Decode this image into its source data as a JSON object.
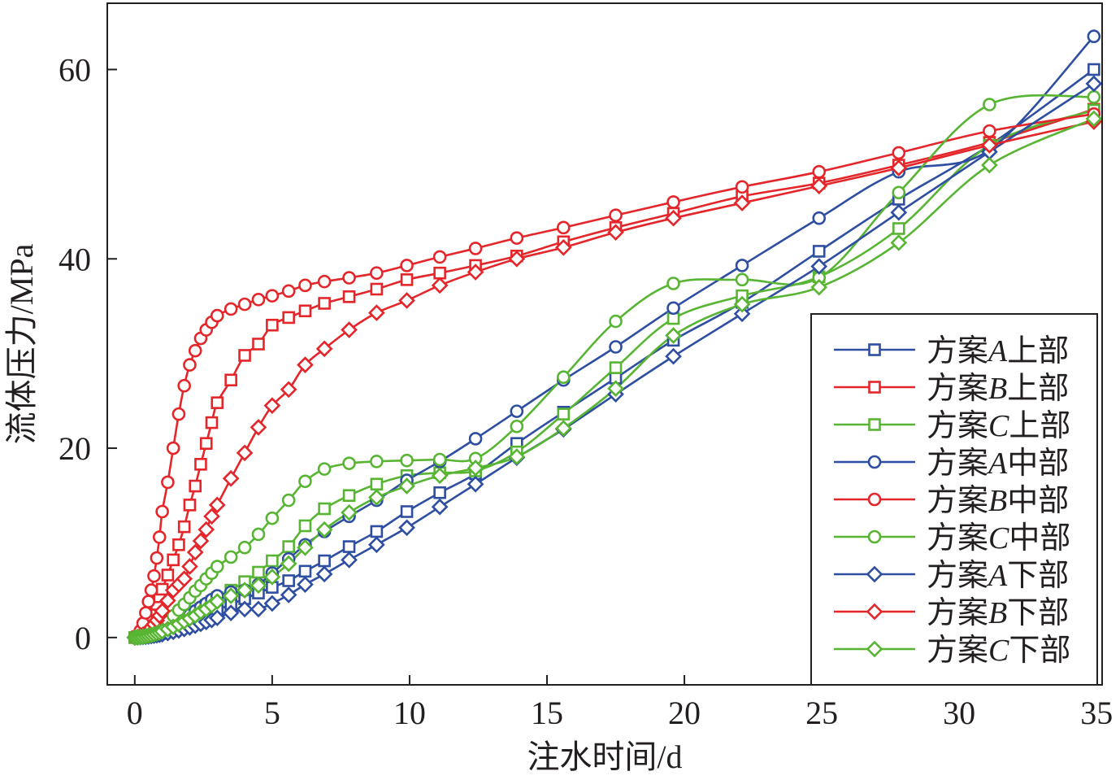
{
  "chart_data": {
    "type": "line",
    "title": "",
    "xlabel": "注水时间/d",
    "ylabel": "流体压力/MPa",
    "xlim": [
      -1,
      35.2
    ],
    "ylim": [
      -5,
      67
    ],
    "xticks": [
      0,
      5,
      10,
      15,
      20,
      25,
      30,
      35
    ],
    "yticks": [
      0,
      20,
      40,
      60
    ],
    "x": [
      0,
      0.1,
      0.2,
      0.3,
      0.4,
      0.5,
      0.6,
      0.7,
      0.8,
      0.9,
      1.0,
      1.2,
      1.4,
      1.6,
      1.8,
      2.0,
      2.2,
      2.4,
      2.6,
      2.8,
      3.0,
      3.5,
      4.0,
      4.5,
      5.0,
      5.6,
      6.2,
      6.9,
      7.8,
      8.8,
      9.9,
      11.1,
      12.4,
      13.9,
      15.6,
      17.5,
      19.6,
      22.1,
      24.9,
      27.8,
      31.1,
      34.9
    ],
    "series": [
      {
        "name": "方案A上部",
        "label_main": "方案",
        "label_italic": "A",
        "label_tail": "上部",
        "color": "#2e4ea1",
        "marker": "square",
        "values": [
          0,
          0.02,
          0.05,
          0.08,
          0.12,
          0.17,
          0.22,
          0.28,
          0.35,
          0.42,
          0.5,
          0.66,
          0.84,
          1.04,
          1.26,
          1.5,
          1.76,
          2.0,
          2.3,
          2.6,
          2.9,
          3.5,
          4.1,
          4.7,
          5.3,
          6.0,
          7.0,
          8.1,
          9.6,
          11.2,
          13.3,
          15.3,
          17.3,
          20.5,
          23.8,
          27.4,
          31.4,
          35.4,
          40.8,
          46.3,
          52.0,
          60.0
        ]
      },
      {
        "name": "方案B上部",
        "label_main": "方案",
        "label_italic": "B",
        "label_tail": "上部",
        "color": "#e4262b",
        "marker": "square",
        "values": [
          0,
          0.1,
          0.3,
          0.6,
          1.0,
          1.5,
          2.1,
          2.8,
          3.5,
          4.3,
          5.1,
          6.6,
          8.2,
          9.8,
          11.7,
          14.0,
          16.0,
          18.3,
          20.5,
          22.7,
          24.8,
          27.2,
          29.8,
          31.0,
          33.0,
          33.8,
          34.5,
          35.3,
          36.0,
          36.8,
          37.8,
          38.5,
          39.3,
          40.3,
          41.8,
          43.3,
          44.8,
          46.6,
          48.0,
          49.9,
          52.3,
          55.8
        ]
      },
      {
        "name": "方案C上部",
        "label_main": "方案",
        "label_italic": "C",
        "label_tail": "上部",
        "color": "#58b533",
        "marker": "square",
        "values": [
          0,
          0.03,
          0.07,
          0.12,
          0.18,
          0.25,
          0.33,
          0.42,
          0.52,
          0.63,
          0.75,
          1.0,
          1.3,
          1.6,
          1.9,
          2.2,
          2.6,
          3.0,
          3.4,
          3.8,
          4.2,
          5.0,
          5.9,
          6.9,
          8.1,
          9.6,
          11.8,
          13.6,
          15.0,
          16.2,
          17.1,
          17.4,
          17.6,
          19.6,
          23.6,
          28.5,
          33.7,
          36.1,
          38.1,
          43.2,
          52.0,
          55.7
        ]
      },
      {
        "name": "方案A中部",
        "label_main": "方案",
        "label_italic": "A",
        "label_tail": "中部",
        "color": "#2e4ea1",
        "marker": "circle",
        "values": [
          0,
          0.03,
          0.07,
          0.13,
          0.2,
          0.28,
          0.37,
          0.47,
          0.58,
          0.7,
          0.82,
          1.1,
          1.4,
          1.7,
          2.0,
          2.4,
          2.8,
          3.2,
          3.6,
          4.0,
          4.4,
          4.8,
          5.0,
          5.6,
          6.8,
          8.3,
          9.8,
          11.2,
          12.8,
          14.5,
          16.6,
          18.6,
          21.0,
          23.9,
          27.2,
          30.7,
          34.8,
          39.3,
          44.3,
          49.2,
          51.5,
          63.5
        ]
      },
      {
        "name": "方案B中部",
        "label_main": "方案",
        "label_italic": "B",
        "label_tail": "中部",
        "color": "#e4262b",
        "marker": "circle",
        "values": [
          0,
          0.2,
          0.7,
          1.5,
          2.6,
          3.8,
          5.0,
          6.5,
          8.4,
          10.6,
          13.3,
          16.4,
          20.0,
          23.6,
          26.6,
          28.8,
          30.3,
          31.6,
          32.5,
          33.3,
          34.0,
          34.7,
          35.2,
          35.7,
          36.1,
          36.6,
          37.2,
          37.6,
          38.0,
          38.5,
          39.3,
          40.2,
          41.1,
          42.2,
          43.3,
          44.6,
          46.0,
          47.6,
          49.2,
          51.2,
          53.5,
          55.3
        ]
      },
      {
        "name": "方案C中部",
        "label_main": "方案",
        "label_italic": "C",
        "label_tail": "中部",
        "color": "#58b533",
        "marker": "circle",
        "values": [
          0,
          0.05,
          0.12,
          0.2,
          0.3,
          0.42,
          0.55,
          0.7,
          0.88,
          1.07,
          1.3,
          1.8,
          2.3,
          2.9,
          3.5,
          4.2,
          4.9,
          5.5,
          6.2,
          6.8,
          7.5,
          8.5,
          9.5,
          10.9,
          12.6,
          14.5,
          16.5,
          17.8,
          18.4,
          18.6,
          18.7,
          18.8,
          18.9,
          22.3,
          27.5,
          33.4,
          37.4,
          37.8,
          38.0,
          47.0,
          56.3,
          57.1
        ]
      },
      {
        "name": "方案A下部",
        "label_main": "方案",
        "label_italic": "A",
        "label_tail": "下部",
        "color": "#2e4ea1",
        "marker": "diamond",
        "values": [
          0,
          0.01,
          0.03,
          0.05,
          0.08,
          0.11,
          0.15,
          0.19,
          0.24,
          0.29,
          0.35,
          0.47,
          0.6,
          0.74,
          0.9,
          1.07,
          1.25,
          1.44,
          1.64,
          1.85,
          2.07,
          2.6,
          3.0,
          3.0,
          3.6,
          4.5,
          5.6,
          6.7,
          8.2,
          9.8,
          11.6,
          13.8,
          16.2,
          19.0,
          22.0,
          25.7,
          29.7,
          34.2,
          39.2,
          44.9,
          51.3,
          58.5
        ]
      },
      {
        "name": "方案B下部",
        "label_main": "方案",
        "label_italic": "B",
        "label_tail": "下部",
        "color": "#e4262b",
        "marker": "diamond",
        "values": [
          0,
          0.05,
          0.15,
          0.3,
          0.5,
          0.75,
          1.05,
          1.4,
          1.8,
          2.3,
          2.8,
          3.9,
          5.0,
          5.6,
          6.2,
          7.5,
          9.0,
          10.2,
          11.4,
          12.8,
          14.0,
          16.8,
          19.5,
          22.2,
          24.5,
          26.2,
          28.8,
          30.5,
          32.5,
          34.3,
          35.6,
          37.2,
          38.6,
          40.0,
          41.2,
          42.8,
          44.3,
          45.9,
          47.7,
          49.6,
          52.0,
          54.5
        ]
      },
      {
        "name": "方案C下部",
        "label_main": "方案",
        "label_italic": "C",
        "label_tail": "下部",
        "color": "#58b533",
        "marker": "diamond",
        "values": [
          0,
          0.02,
          0.05,
          0.09,
          0.14,
          0.2,
          0.27,
          0.35,
          0.44,
          0.54,
          0.65,
          0.88,
          1.13,
          1.4,
          1.7,
          2.0,
          2.3,
          2.7,
          3.0,
          3.4,
          3.8,
          4.4,
          5.0,
          5.5,
          6.4,
          7.8,
          9.5,
          11.4,
          13.2,
          14.8,
          16.0,
          17.1,
          17.9,
          19.1,
          22.1,
          26.3,
          31.9,
          35.2,
          37.0,
          41.7,
          49.9,
          54.8
        ]
      }
    ],
    "legend": {
      "placement": "bottom-right"
    },
    "grid": false
  }
}
